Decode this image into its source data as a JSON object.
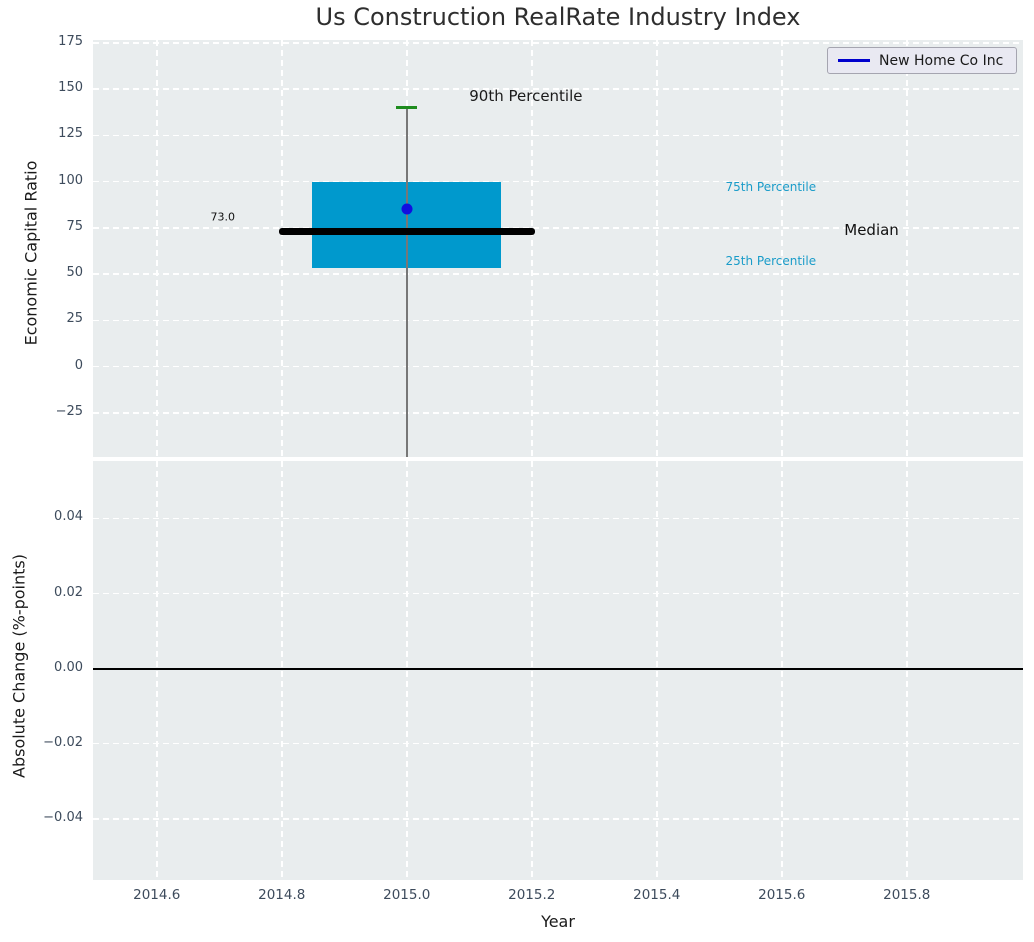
{
  "figure": {
    "title": "Us Construction RealRate Industry Index"
  },
  "legend": {
    "label": "New Home Co Inc",
    "line_color": "#0000cd",
    "location": "upper right"
  },
  "colors": {
    "axes_bg": "#e9edee",
    "grid": "#ffffff",
    "tick_label": "#3d4b5c",
    "box_fill": "#0099cd",
    "median_line": "#000000",
    "whisker": "#777777",
    "cap_green": "#1e8c1e",
    "company_dot": "#1010e0",
    "percentile_text": "#1a9cc9",
    "zero_line": "#000000"
  },
  "chart_data": [
    {
      "type": "boxplot",
      "title": "Us Construction RealRate Industry Index",
      "ylabel": "Economic Capital Ratio",
      "xlim": [
        2014.498,
        2015.986
      ],
      "ylim": [
        -48.9,
        176.5
      ],
      "yticks": [
        175,
        150,
        125,
        100,
        75,
        50,
        25,
        0,
        -25
      ],
      "ytick_labels": [
        "175",
        "150",
        "125",
        "100",
        "75",
        "50",
        "25",
        "0",
        "−25"
      ],
      "grid": {
        "style": "dashed",
        "color": "#ffffff"
      },
      "legend_label": "New Home Co Inc",
      "box": {
        "x": 2015.0,
        "p90": 140,
        "p75": 100,
        "median": 73.0,
        "p25": 53,
        "whisker_low": -49,
        "median_text": "73.0",
        "company": {
          "name": "New Home Co Inc",
          "value": 85
        },
        "box_halfwidth": 0.151,
        "median_halfwidth": 0.205,
        "cap_halfwidth": 0.017
      },
      "annotations": [
        {
          "id": "p90-label",
          "text": "90th Percentile",
          "x": 2015.1,
          "y": 146,
          "color": "#1a1a1a",
          "size": 15
        },
        {
          "id": "p75-label",
          "text": "75th Percentile",
          "x": 2015.51,
          "y": 97,
          "color": "#1a9cc9",
          "size": 12
        },
        {
          "id": "median-label",
          "text": "Median",
          "x": 2015.7,
          "y": 74,
          "color": "#111111",
          "size": 15
        },
        {
          "id": "p25-label",
          "text": "25th Percentile",
          "x": 2015.51,
          "y": 57,
          "color": "#1a9cc9",
          "size": 12
        },
        {
          "id": "median-value-label",
          "text": "73.0",
          "x": 2014.686,
          "y": 81,
          "color": "#111111",
          "size": 11
        }
      ]
    },
    {
      "type": "line",
      "ylabel": "Absolute Change (%-points)",
      "xlabel": "Year",
      "xlim": [
        2014.498,
        2015.986
      ],
      "ylim": [
        -0.0563,
        0.0553
      ],
      "yticks": [
        0.04,
        0.02,
        0.0,
        -0.02,
        -0.04
      ],
      "ytick_labels": [
        "0.04",
        "0.02",
        "0.00",
        "−0.02",
        "−0.04"
      ],
      "xticks": [
        2014.6,
        2014.8,
        2015.0,
        2015.2,
        2015.4,
        2015.6,
        2015.8
      ],
      "xtick_labels": [
        "2014.6",
        "2014.8",
        "2015.0",
        "2015.2",
        "2015.4",
        "2015.6",
        "2015.8"
      ],
      "zero_line": 0.0,
      "series": []
    }
  ]
}
